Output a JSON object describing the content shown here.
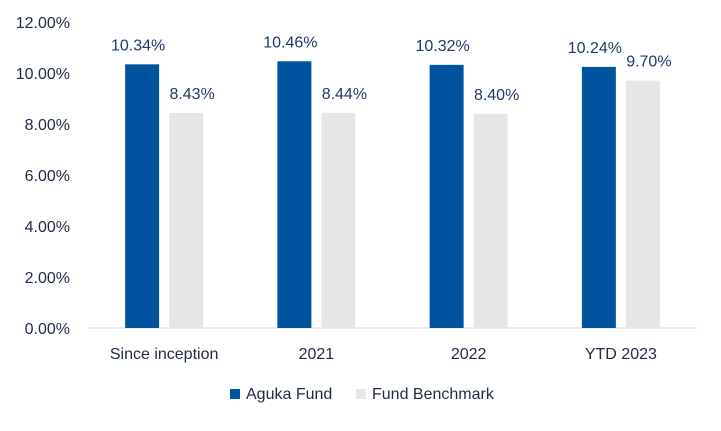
{
  "chart_data": {
    "type": "bar",
    "categories": [
      "Since inception",
      "2021",
      "2022",
      "YTD 2023"
    ],
    "series": [
      {
        "name": "Aguka Fund",
        "values": [
          10.34,
          10.46,
          10.32,
          10.24
        ],
        "labels": [
          "10.34%",
          "10.46%",
          "10.32%",
          "10.24%"
        ],
        "color": "#00549f"
      },
      {
        "name": "Fund Benchmark",
        "values": [
          8.43,
          8.44,
          8.4,
          9.7
        ],
        "labels": [
          "8.43%",
          "8.44%",
          "8.40%",
          "9.70%"
        ],
        "color": "#e6e6e6"
      }
    ],
    "yticks": [
      "0.00%",
      "2.00%",
      "4.00%",
      "6.00%",
      "8.00%",
      "10.00%",
      "12.00%"
    ],
    "ylim": [
      0,
      12
    ],
    "grid": false,
    "legend": "bottom",
    "title": "",
    "xlabel": "",
    "ylabel": ""
  }
}
